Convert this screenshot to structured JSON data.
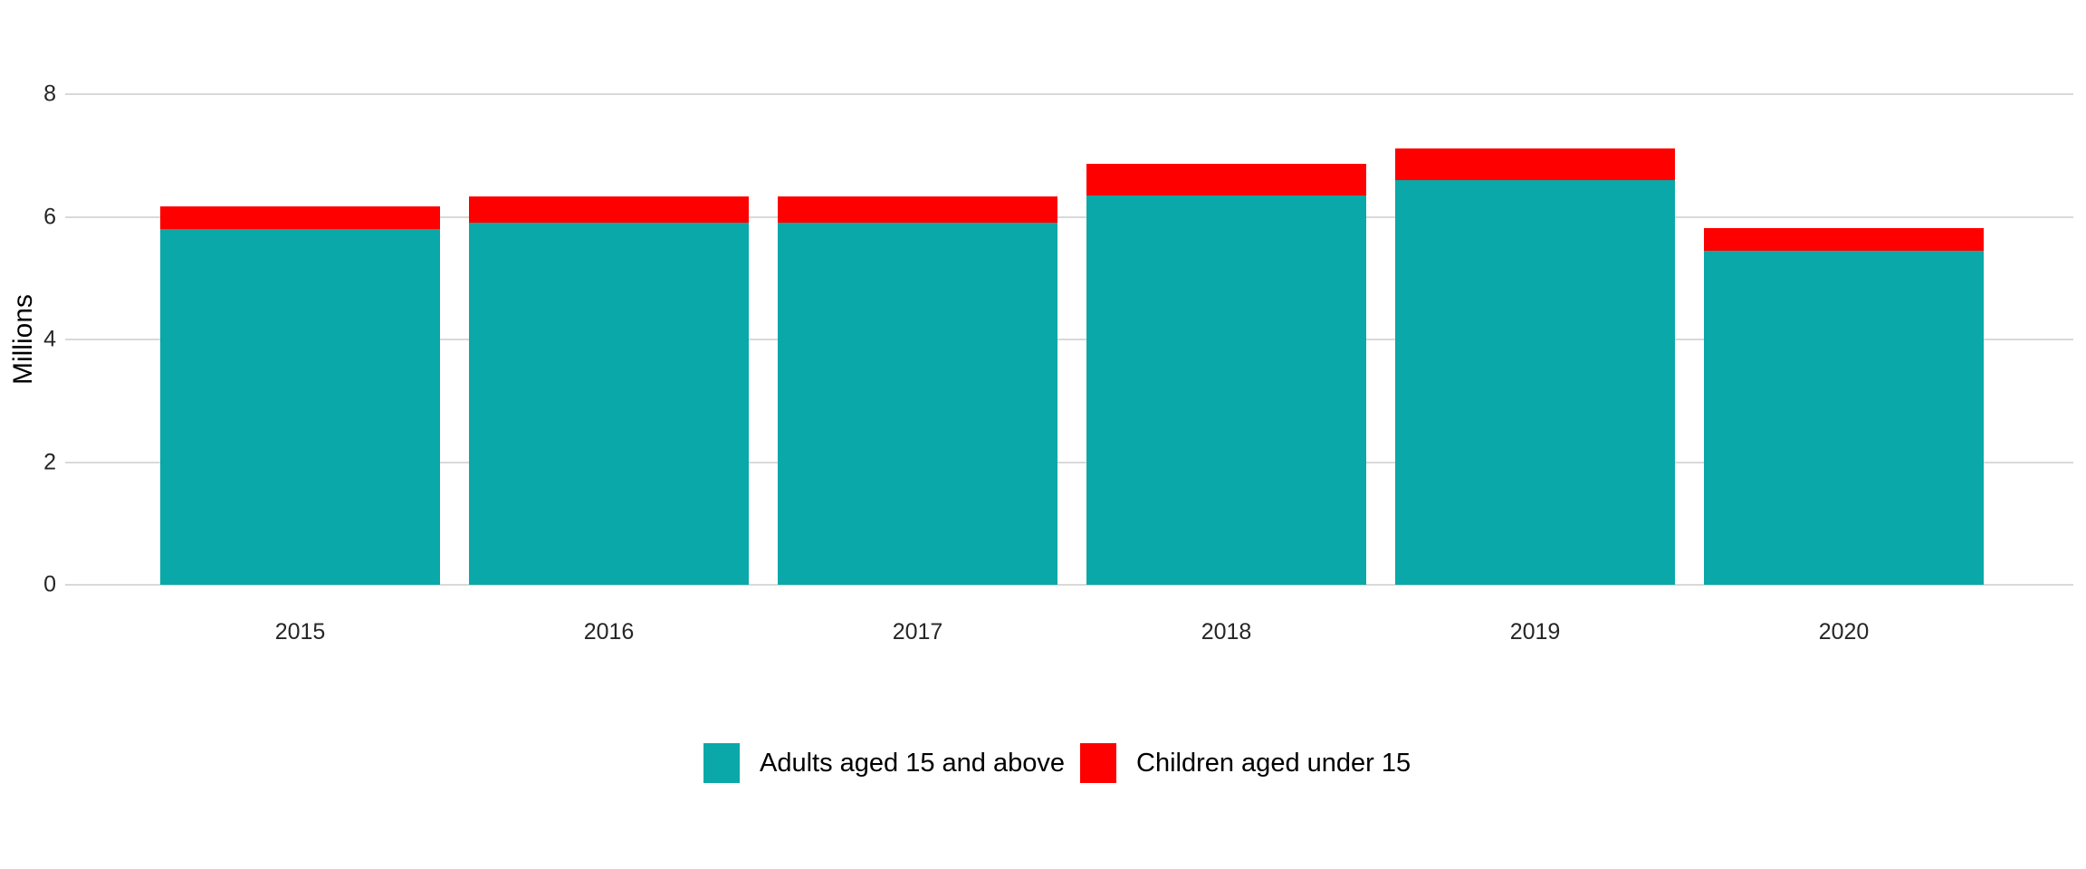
{
  "chart_data": {
    "type": "bar",
    "stacked": true,
    "title": "",
    "xlabel": "",
    "ylabel": "Millions",
    "categories": [
      "2015",
      "2016",
      "2017",
      "2018",
      "2019",
      "2020"
    ],
    "series": [
      {
        "name": "Adults aged 15 and above",
        "color": "#0AA8A8",
        "values": [
          5.8,
          5.9,
          5.9,
          6.35,
          6.6,
          5.45
        ]
      },
      {
        "name": "Children aged under 15",
        "color": "#FF0000",
        "values": [
          0.37,
          0.43,
          0.43,
          0.51,
          0.51,
          0.37
        ]
      }
    ],
    "totals": [
      6.17,
      6.33,
      6.33,
      6.86,
      7.11,
      5.82
    ],
    "ylim": [
      0,
      8
    ],
    "yticks": [
      0,
      2,
      4,
      6,
      8
    ],
    "grid": "horizontal",
    "gridline_color": "#d9d9d9",
    "tick_label_color": "#262626",
    "legend_position": "bottom-center",
    "legend": {
      "items": [
        {
          "label": "Adults aged 15 and above",
          "color": "#0AA8A8"
        },
        {
          "label": "Children aged under 15",
          "color": "#FF0000"
        }
      ]
    }
  }
}
